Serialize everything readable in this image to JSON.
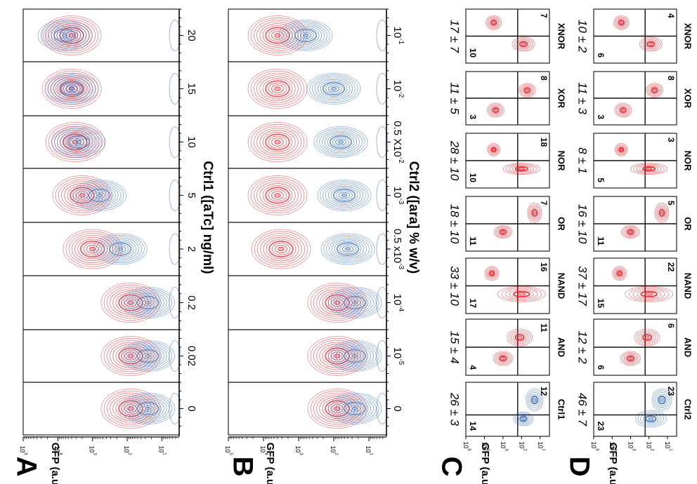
{
  "figure": {
    "orientation": "rotated 90 degrees clockwise",
    "colors": {
      "red_population": "#e8242c",
      "blue_population": "#3a6fb8",
      "axis": "#000000"
    }
  },
  "chart_data": [
    {
      "panel": "A",
      "type": "contour",
      "title": "",
      "ylabel": "GFP (a.u.)",
      "xlabel": "Ctrl1 ([aTc] ng/ml)",
      "gfp_ticks": [
        "10^5",
        "10^4",
        "10^3",
        "10^2",
        "10^1"
      ],
      "conditions": [
        "0",
        "0.02",
        "0.2",
        "2",
        "5",
        "10",
        "15",
        "20"
      ],
      "series": [
        {
          "name": "red",
          "log10_gfp_peak": [
            1.9,
            1.9,
            1.9,
            3.0,
            3.3,
            3.5,
            3.6,
            3.6
          ]
        },
        {
          "name": "blue",
          "log10_gfp_peak": [
            1.4,
            1.4,
            1.4,
            2.2,
            2.8,
            3.4,
            3.6,
            3.8
          ]
        }
      ]
    },
    {
      "panel": "B",
      "type": "contour",
      "ylabel": "GFP (a.u.)",
      "xlabel": "Ctrl2 ([ara] % w/v)",
      "gfp_ticks": [
        "10^5",
        "10^4",
        "10^3",
        "10^2",
        "10^1"
      ],
      "conditions": [
        "0",
        "10^-5",
        "10^-4",
        "0.5 x10^-3",
        "10^-3",
        "0.5 X10^-2",
        "10^-2",
        "10^-1"
      ],
      "series": [
        {
          "name": "red",
          "log10_gfp_peak": [
            1.9,
            1.9,
            1.9,
            3.5,
            3.6,
            3.6,
            3.6,
            3.6
          ]
        },
        {
          "name": "blue",
          "log10_gfp_peak": [
            1.4,
            1.4,
            1.4,
            1.6,
            1.7,
            1.8,
            2.0,
            2.8
          ]
        }
      ]
    },
    {
      "panel": "C",
      "type": "contour",
      "ylabel": "GFP (a.u.)",
      "gfp_ticks": [
        "10^5",
        "10^4",
        "10^3",
        "10^2",
        "10^1"
      ],
      "gates": [
        {
          "name": "Ctrl1",
          "stat": "26 ± 3",
          "q_top": "14",
          "q_bottom": "12",
          "color": "blue"
        },
        {
          "name": "AND",
          "stat": "15 ± 4",
          "q_top": "4",
          "q_bottom": "11",
          "color": "red"
        },
        {
          "name": "NAND",
          "stat": "33 ± 10",
          "q_top": "17",
          "q_bottom": "16",
          "color": "red"
        },
        {
          "name": "OR",
          "stat": "18 ± 10",
          "q_top": "11",
          "q_bottom": "7",
          "color": "red"
        },
        {
          "name": "NOR",
          "stat": "28 ± 10",
          "q_top": "10",
          "q_bottom": "18",
          "color": "red"
        },
        {
          "name": "XOR",
          "stat": "11 ± 5",
          "q_top": "3",
          "q_bottom": "8",
          "color": "red"
        },
        {
          "name": "XNOR",
          "stat": "17 ± 7",
          "q_top": "10",
          "q_bottom": "7",
          "color": "red"
        }
      ]
    },
    {
      "panel": "D",
      "type": "contour",
      "ylabel": "GFP (a.u.)",
      "gfp_ticks": [
        "10^5",
        "10^4",
        "10^3",
        "10^2",
        "10^1"
      ],
      "gates": [
        {
          "name": "Ctrl2",
          "stat": "46 ± 7",
          "q_top": "23",
          "q_bottom": "23",
          "color": "blue"
        },
        {
          "name": "AND",
          "stat": "12 ± 2",
          "q_top": "6",
          "q_bottom": "6",
          "color": "red"
        },
        {
          "name": "NAND",
          "stat": "37 ± 17",
          "q_top": "15",
          "q_bottom": "22",
          "color": "red"
        },
        {
          "name": "OR",
          "stat": "16 ± 10",
          "q_top": "11",
          "q_bottom": "5",
          "color": "red"
        },
        {
          "name": "NOR",
          "stat": "8 ± 1",
          "q_top": "5",
          "q_bottom": "3",
          "color": "red"
        },
        {
          "name": "XOR",
          "stat": "11 ± 3",
          "q_top": "3",
          "q_bottom": "8",
          "color": "red"
        },
        {
          "name": "XNOR",
          "stat": "10 ± 2",
          "q_top": "6",
          "q_bottom": "4",
          "color": "red"
        }
      ]
    }
  ]
}
